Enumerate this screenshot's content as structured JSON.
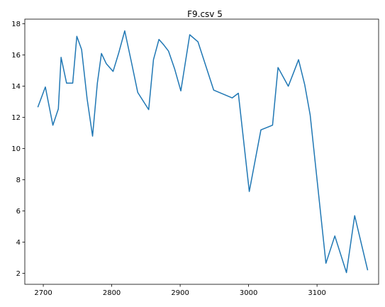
{
  "chart_data": {
    "type": "line",
    "title": "F9.csv 5",
    "xlabel": "",
    "ylabel": "",
    "xlim": [
      2673,
      2195
    ],
    "xlim_note": "",
    "ylim": [
      1.3,
      18.3
    ],
    "grid": false,
    "line_color": "#1f77b4",
    "x_ticks": [
      2700,
      2800,
      2900,
      3000,
      3100
    ],
    "y_ticks": [
      2,
      4,
      6,
      8,
      10,
      12,
      14,
      16,
      18
    ],
    "series": [
      {
        "x": [
          2692,
          2703,
          2714,
          2722,
          2726,
          2734,
          2743,
          2749,
          2756,
          2764,
          2772,
          2779,
          2785,
          2792,
          2802,
          2810,
          2819,
          2829,
          2838,
          2854,
          2861,
          2869,
          2876,
          2883,
          2892,
          2901,
          2914,
          2926,
          2949,
          2976,
          2985,
          3001,
          3018,
          3035,
          3043,
          3058,
          3066,
          3073,
          3082,
          3090,
          3113,
          3126,
          3143,
          3155,
          3174
        ],
        "y": [
          12.65,
          13.95,
          11.5,
          12.55,
          15.85,
          14.2,
          14.2,
          17.2,
          16.35,
          13.2,
          10.8,
          14.2,
          16.1,
          15.45,
          14.95,
          16.1,
          17.55,
          15.5,
          13.6,
          12.5,
          15.7,
          17.0,
          16.65,
          16.25,
          15.1,
          13.7,
          17.3,
          16.85,
          13.75,
          13.25,
          13.55,
          7.25,
          11.2,
          11.5,
          15.2,
          14.0,
          14.9,
          15.7,
          14.1,
          12.15,
          2.65,
          4.4,
          2.05,
          5.7,
          2.2
        ]
      }
    ]
  }
}
